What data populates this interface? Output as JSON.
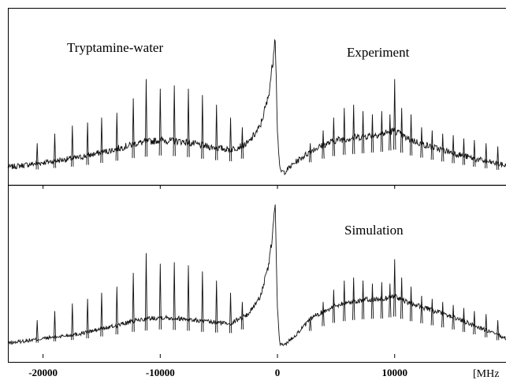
{
  "chart_data": [
    {
      "type": "line",
      "panel": "top",
      "labels": [
        "Tryptamine-water",
        "Experiment"
      ],
      "xlim": [
        -23000,
        19500
      ],
      "xticks": [
        -20000,
        -10000,
        0,
        10000
      ],
      "series": [
        {
          "x": [
            -23000,
            -20000,
            -17000,
            -14000,
            -12000,
            -10000,
            -8000,
            -6000,
            -4000,
            -2500,
            -1500,
            -800,
            -400,
            -200,
            0,
            200,
            600,
            1500,
            3000,
            5000,
            7000,
            9000,
            10000,
            11000,
            13000,
            15000,
            17000,
            19500
          ],
          "y": [
            0.07,
            0.1,
            0.13,
            0.18,
            0.22,
            0.24,
            0.23,
            0.2,
            0.18,
            0.22,
            0.32,
            0.5,
            0.72,
            0.92,
            0.3,
            0.05,
            0.04,
            0.1,
            0.18,
            0.24,
            0.26,
            0.28,
            0.3,
            0.25,
            0.2,
            0.16,
            0.12,
            0.08
          ]
        }
      ],
      "peaks": [
        {
          "x": -20500,
          "y": 0.22
        },
        {
          "x": -19000,
          "y": 0.28
        },
        {
          "x": -17500,
          "y": 0.33
        },
        {
          "x": -16200,
          "y": 0.35
        },
        {
          "x": -15000,
          "y": 0.38
        },
        {
          "x": -13700,
          "y": 0.41
        },
        {
          "x": -12300,
          "y": 0.5
        },
        {
          "x": -11200,
          "y": 0.62
        },
        {
          "x": -10000,
          "y": 0.56
        },
        {
          "x": -8800,
          "y": 0.58
        },
        {
          "x": -7600,
          "y": 0.56
        },
        {
          "x": -6400,
          "y": 0.52
        },
        {
          "x": -5200,
          "y": 0.46
        },
        {
          "x": -4000,
          "y": 0.38
        },
        {
          "x": -3000,
          "y": 0.32
        },
        {
          "x": 2800,
          "y": 0.22
        },
        {
          "x": 3900,
          "y": 0.3
        },
        {
          "x": 4800,
          "y": 0.38
        },
        {
          "x": 5700,
          "y": 0.44
        },
        {
          "x": 6500,
          "y": 0.46
        },
        {
          "x": 7300,
          "y": 0.42
        },
        {
          "x": 8100,
          "y": 0.4
        },
        {
          "x": 8900,
          "y": 0.42
        },
        {
          "x": 9600,
          "y": 0.4
        },
        {
          "x": 10000,
          "y": 0.62
        },
        {
          "x": 10600,
          "y": 0.44
        },
        {
          "x": 11400,
          "y": 0.4
        },
        {
          "x": 12300,
          "y": 0.32
        },
        {
          "x": 13200,
          "y": 0.3
        },
        {
          "x": 14100,
          "y": 0.28
        },
        {
          "x": 15000,
          "y": 0.27
        },
        {
          "x": 15900,
          "y": 0.25
        },
        {
          "x": 16800,
          "y": 0.24
        },
        {
          "x": 17800,
          "y": 0.22
        },
        {
          "x": 18800,
          "y": 0.2
        }
      ]
    },
    {
      "type": "line",
      "panel": "bottom",
      "labels": [
        "Simulation"
      ],
      "xlabel": "[MHz",
      "xlim": [
        -23000,
        19500
      ],
      "xticks": [
        -20000,
        -10000,
        0,
        10000
      ],
      "series": [
        {
          "x": [
            -23000,
            -20000,
            -17000,
            -14000,
            -12000,
            -10000,
            -8000,
            -6000,
            -4000,
            -2500,
            -1500,
            -800,
            -400,
            -200,
            0,
            200,
            600,
            1500,
            3000,
            5000,
            7000,
            9000,
            10000,
            11000,
            13000,
            15000,
            17000,
            19500
          ],
          "y": [
            0.03,
            0.06,
            0.09,
            0.14,
            0.18,
            0.2,
            0.19,
            0.17,
            0.16,
            0.22,
            0.33,
            0.52,
            0.75,
            0.96,
            0.25,
            0.02,
            0.02,
            0.08,
            0.2,
            0.28,
            0.31,
            0.32,
            0.34,
            0.3,
            0.25,
            0.2,
            0.14,
            0.06
          ]
        }
      ],
      "peaks": [
        {
          "x": -20500,
          "y": 0.18
        },
        {
          "x": -19000,
          "y": 0.24
        },
        {
          "x": -17500,
          "y": 0.29
        },
        {
          "x": -16200,
          "y": 0.32
        },
        {
          "x": -15000,
          "y": 0.36
        },
        {
          "x": -13700,
          "y": 0.4
        },
        {
          "x": -12300,
          "y": 0.49
        },
        {
          "x": -11200,
          "y": 0.62
        },
        {
          "x": -10000,
          "y": 0.55
        },
        {
          "x": -8800,
          "y": 0.56
        },
        {
          "x": -7600,
          "y": 0.54
        },
        {
          "x": -6400,
          "y": 0.5
        },
        {
          "x": -5200,
          "y": 0.44
        },
        {
          "x": -4000,
          "y": 0.36
        },
        {
          "x": -3000,
          "y": 0.3
        },
        {
          "x": 2800,
          "y": 0.2
        },
        {
          "x": 3900,
          "y": 0.3
        },
        {
          "x": 4800,
          "y": 0.38
        },
        {
          "x": 5700,
          "y": 0.44
        },
        {
          "x": 6500,
          "y": 0.46
        },
        {
          "x": 7300,
          "y": 0.44
        },
        {
          "x": 8100,
          "y": 0.42
        },
        {
          "x": 8900,
          "y": 0.43
        },
        {
          "x": 9600,
          "y": 0.42
        },
        {
          "x": 10000,
          "y": 0.58
        },
        {
          "x": 10600,
          "y": 0.46
        },
        {
          "x": 11400,
          "y": 0.4
        },
        {
          "x": 12300,
          "y": 0.34
        },
        {
          "x": 13200,
          "y": 0.32
        },
        {
          "x": 14100,
          "y": 0.3
        },
        {
          "x": 15000,
          "y": 0.28
        },
        {
          "x": 15900,
          "y": 0.26
        },
        {
          "x": 16800,
          "y": 0.24
        },
        {
          "x": 17800,
          "y": 0.22
        },
        {
          "x": 18800,
          "y": 0.18
        }
      ]
    }
  ]
}
